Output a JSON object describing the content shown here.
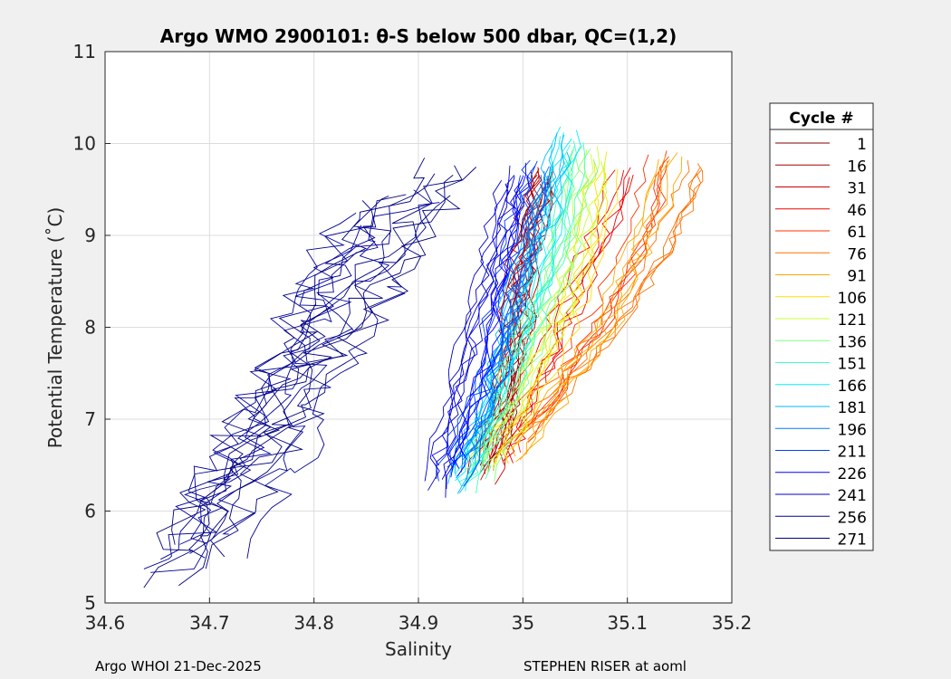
{
  "chart_data": {
    "type": "line",
    "title": "Argo WMO 2900101: θ-S below 500 dbar,  QC=(1,2)",
    "xlabel": "Salinity",
    "ylabel": "Potential Temperature (˚C)",
    "xlim": [
      34.6,
      35.2
    ],
    "ylim": [
      5,
      11
    ],
    "xticks": [
      34.6,
      34.7,
      34.8,
      34.9,
      35,
      35.1,
      35.2
    ],
    "xtick_labels": [
      "34.6",
      "34.7",
      "34.8",
      "34.9",
      "35",
      "35.1",
      "35.2"
    ],
    "yticks": [
      5,
      6,
      7,
      8,
      9,
      10,
      11
    ],
    "ytick_labels": [
      "5",
      "6",
      "7",
      "8",
      "9",
      "10",
      "11"
    ],
    "grid": true,
    "legend_title": "Cycle #",
    "legend_position": "right",
    "series": [
      {
        "name": "1",
        "color": "#800000",
        "salinity": [
          34.96,
          34.98,
          34.99,
          35.0,
          35.0,
          35.01,
          35.02
        ],
        "theta": [
          6.5,
          7.0,
          7.6,
          8.1,
          8.6,
          9.1,
          9.6
        ]
      },
      {
        "name": "16",
        "color": "#a00000",
        "salinity": [
          34.96,
          34.98,
          34.99,
          34.99,
          35.0,
          35.01,
          35.02
        ],
        "theta": [
          6.5,
          7.1,
          7.7,
          8.3,
          8.8,
          9.2,
          9.6
        ]
      },
      {
        "name": "31",
        "color": "#c80000",
        "salinity": [
          34.97,
          34.98,
          34.99,
          35.0,
          35.0,
          35.01,
          35.02
        ],
        "theta": [
          6.4,
          7.0,
          7.6,
          8.1,
          8.6,
          9.1,
          9.7
        ]
      },
      {
        "name": "46",
        "color": "#f00000",
        "salinity": [
          34.98,
          35.0,
          35.02,
          35.04,
          35.06,
          35.08,
          35.1
        ],
        "theta": [
          6.6,
          7.1,
          7.6,
          8.1,
          8.6,
          9.1,
          9.7
        ]
      },
      {
        "name": "61",
        "color": "#ff3000",
        "salinity": [
          34.99,
          35.02,
          35.05,
          35.08,
          35.1,
          35.12,
          35.13
        ],
        "theta": [
          6.7,
          7.2,
          7.7,
          8.2,
          8.7,
          9.2,
          9.8
        ]
      },
      {
        "name": "76",
        "color": "#ff7000",
        "salinity": [
          35.0,
          35.04,
          35.08,
          35.11,
          35.14,
          35.16,
          35.17
        ],
        "theta": [
          6.8,
          7.3,
          7.8,
          8.3,
          8.8,
          9.3,
          9.7
        ]
      },
      {
        "name": "91",
        "color": "#ffa800",
        "salinity": [
          34.99,
          35.02,
          35.05,
          35.08,
          35.1,
          35.12,
          35.14
        ],
        "theta": [
          6.6,
          7.1,
          7.6,
          8.1,
          8.7,
          9.2,
          9.9
        ]
      },
      {
        "name": "106",
        "color": "#ffe000",
        "salinity": [
          34.97,
          35.0,
          35.02,
          35.04,
          35.06,
          35.07,
          35.08
        ],
        "theta": [
          6.6,
          7.1,
          7.6,
          8.1,
          8.6,
          9.1,
          9.8
        ]
      },
      {
        "name": "121",
        "color": "#c8ff38",
        "salinity": [
          34.96,
          34.99,
          35.01,
          35.03,
          35.05,
          35.06,
          35.07
        ],
        "theta": [
          6.5,
          7.0,
          7.6,
          8.1,
          8.7,
          9.2,
          9.9
        ]
      },
      {
        "name": "136",
        "color": "#80ff80",
        "salinity": [
          34.96,
          34.98,
          35.0,
          35.02,
          35.04,
          35.05,
          35.06
        ],
        "theta": [
          6.4,
          7.0,
          7.6,
          8.2,
          8.8,
          9.4,
          9.9
        ]
      },
      {
        "name": "151",
        "color": "#40ffc0",
        "salinity": [
          34.95,
          34.97,
          34.99,
          35.01,
          35.03,
          35.04,
          35.05
        ],
        "theta": [
          6.3,
          6.9,
          7.5,
          8.1,
          8.7,
          9.4,
          10.0
        ]
      },
      {
        "name": "166",
        "color": "#00f0ff",
        "salinity": [
          34.94,
          34.96,
          34.98,
          35.0,
          35.02,
          35.03,
          35.04
        ],
        "theta": [
          6.3,
          6.9,
          7.5,
          8.1,
          8.8,
          9.5,
          10.1
        ]
      },
      {
        "name": "181",
        "color": "#00b8ff",
        "salinity": [
          34.94,
          34.96,
          34.98,
          34.99,
          35.01,
          35.03,
          35.04
        ],
        "theta": [
          6.3,
          6.9,
          7.5,
          8.1,
          8.8,
          9.4,
          10.0
        ]
      },
      {
        "name": "196",
        "color": "#0078ff",
        "salinity": [
          34.94,
          34.96,
          34.97,
          34.99,
          35.0,
          35.01,
          35.02
        ],
        "theta": [
          6.5,
          7.0,
          7.6,
          8.2,
          8.7,
          9.2,
          9.7
        ]
      },
      {
        "name": "211",
        "color": "#0040ff",
        "salinity": [
          34.93,
          34.95,
          34.97,
          34.98,
          34.99,
          35.0,
          35.01
        ],
        "theta": [
          6.4,
          7.0,
          7.5,
          8.1,
          8.7,
          9.2,
          9.7
        ]
      },
      {
        "name": "226",
        "color": "#0000ff",
        "salinity": [
          34.93,
          34.94,
          34.96,
          34.97,
          34.98,
          34.99,
          35.0
        ],
        "theta": [
          6.4,
          6.9,
          7.5,
          8.0,
          8.6,
          9.2,
          9.7
        ]
      },
      {
        "name": "241",
        "color": "#0000c8",
        "salinity": [
          34.92,
          34.93,
          34.94,
          34.95,
          34.97,
          34.98,
          34.99
        ],
        "theta": [
          6.3,
          6.9,
          7.4,
          8.0,
          8.6,
          9.1,
          9.6
        ]
      },
      {
        "name": "256",
        "color": "#000098",
        "salinity": [
          34.7,
          34.73,
          34.76,
          34.79,
          34.82,
          34.85,
          34.88
        ],
        "theta": [
          5.5,
          6.2,
          6.8,
          7.5,
          8.1,
          8.7,
          9.3
        ]
      },
      {
        "name": "271",
        "color": "#000080",
        "salinity": [
          34.69,
          34.72,
          34.76,
          34.8,
          34.84,
          34.88,
          34.93
        ],
        "theta": [
          5.4,
          6.1,
          6.8,
          7.5,
          8.2,
          8.9,
          9.6
        ]
      }
    ]
  },
  "footer": {
    "left": "Argo WHOI 21-Dec-2025",
    "right": "STEPHEN RISER at aoml"
  }
}
